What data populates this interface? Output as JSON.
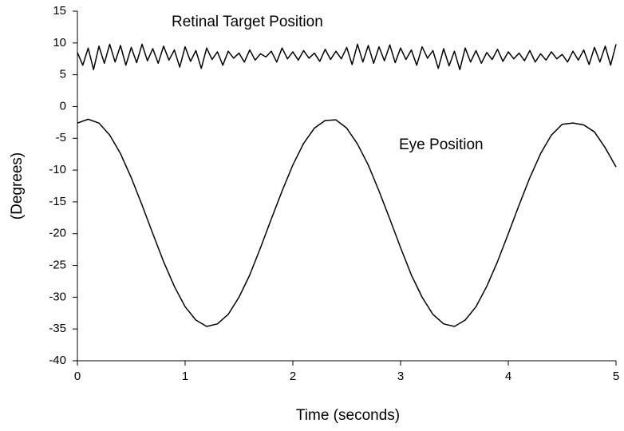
{
  "chart_data": {
    "type": "line",
    "x_label": "Time (seconds)",
    "y_label": "(Degrees)",
    "xlim": [
      0,
      5
    ],
    "xticks": [
      0,
      1,
      2,
      3,
      4,
      5
    ],
    "ylim": [
      -40,
      15
    ],
    "yticks": [
      -40,
      -35,
      -30,
      -25,
      -20,
      -15,
      -10,
      -5,
      0,
      5,
      10,
      15
    ],
    "series": [
      {
        "name": "Retinal Target Position",
        "color": "#000000",
        "x": [
          0,
          0.05,
          0.1,
          0.15,
          0.2,
          0.25,
          0.3,
          0.35,
          0.4,
          0.45,
          0.5,
          0.55,
          0.6,
          0.65,
          0.7,
          0.75,
          0.8,
          0.85,
          0.9,
          0.95,
          1,
          1.05,
          1.1,
          1.15,
          1.2,
          1.25,
          1.3,
          1.35,
          1.4,
          1.45,
          1.5,
          1.55,
          1.6,
          1.65,
          1.7,
          1.75,
          1.8,
          1.85,
          1.9,
          1.95,
          2,
          2.05,
          2.1,
          2.15,
          2.2,
          2.25,
          2.3,
          2.35,
          2.4,
          2.45,
          2.5,
          2.55,
          2.6,
          2.65,
          2.7,
          2.75,
          2.8,
          2.85,
          2.9,
          2.95,
          3,
          3.05,
          3.1,
          3.15,
          3.2,
          3.25,
          3.3,
          3.35,
          3.4,
          3.45,
          3.5,
          3.55,
          3.6,
          3.65,
          3.7,
          3.75,
          3.8,
          3.85,
          3.9,
          3.95,
          4,
          4.05,
          4.1,
          4.15,
          4.2,
          4.25,
          4.3,
          4.35,
          4.4,
          4.45,
          4.5,
          4.55,
          4.6,
          4.65,
          4.7,
          4.75,
          4.8,
          4.85,
          4.9,
          4.95,
          5
        ],
        "values": [
          8.5,
          6.5,
          9.2,
          5.8,
          9.5,
          6.8,
          9.8,
          7.0,
          9.6,
          6.5,
          9.3,
          6.9,
          9.8,
          7.2,
          9.1,
          6.8,
          9.5,
          7.3,
          8.9,
          6.2,
          9.4,
          7.1,
          8.8,
          6.0,
          9.2,
          7.4,
          8.6,
          6.5,
          8.7,
          7.6,
          8.4,
          7.0,
          8.9,
          7.3,
          8.3,
          7.8,
          8.7,
          7.0,
          9.2,
          7.5,
          8.6,
          7.3,
          8.8,
          7.6,
          8.4,
          7.1,
          9.0,
          7.4,
          8.7,
          7.5,
          9.3,
          6.6,
          9.8,
          7.0,
          9.6,
          6.8,
          9.4,
          7.2,
          9.7,
          6.9,
          9.2,
          7.4,
          8.9,
          6.5,
          9.4,
          7.6,
          8.8,
          6.0,
          9.1,
          6.4,
          8.7,
          5.8,
          9.2,
          7.0,
          8.8,
          6.8,
          8.5,
          7.4,
          9.0,
          7.1,
          8.6,
          7.5,
          8.4,
          7.2,
          8.8,
          7.0,
          8.3,
          7.3,
          8.6,
          7.5,
          8.2,
          7.0,
          8.7,
          7.3,
          8.9,
          6.6,
          9.3,
          7.0,
          9.5,
          6.5,
          9.8
        ]
      },
      {
        "name": "Eye Position",
        "color": "#000000",
        "x": [
          0,
          0.1,
          0.2,
          0.3,
          0.4,
          0.5,
          0.6,
          0.7,
          0.8,
          0.9,
          1,
          1.1,
          1.2,
          1.3,
          1.4,
          1.5,
          1.6,
          1.7,
          1.8,
          1.9,
          2,
          2.1,
          2.2,
          2.3,
          2.4,
          2.5,
          2.6,
          2.7,
          2.8,
          2.9,
          3,
          3.1,
          3.2,
          3.3,
          3.4,
          3.5,
          3.6,
          3.7,
          3.8,
          3.9,
          4,
          4.1,
          4.2,
          4.3,
          4.4,
          4.5,
          4.6,
          4.7,
          4.8,
          4.9,
          5
        ],
        "values": [
          -2.6,
          -2.0,
          -2.6,
          -4.5,
          -7.4,
          -11.2,
          -15.5,
          -20.0,
          -24.4,
          -28.3,
          -31.5,
          -33.6,
          -34.6,
          -34.2,
          -32.7,
          -30.0,
          -26.5,
          -22.2,
          -17.7,
          -13.3,
          -9.2,
          -5.8,
          -3.4,
          -2.2,
          -2.1,
          -3.4,
          -5.9,
          -9.2,
          -13.3,
          -17.7,
          -22.2,
          -26.5,
          -30.0,
          -32.7,
          -34.2,
          -34.6,
          -33.6,
          -31.5,
          -28.3,
          -24.4,
          -20.0,
          -15.5,
          -11.2,
          -7.4,
          -4.5,
          -2.8,
          -2.6,
          -2.9,
          -4.0,
          -6.5,
          -9.5
        ]
      }
    ]
  }
}
